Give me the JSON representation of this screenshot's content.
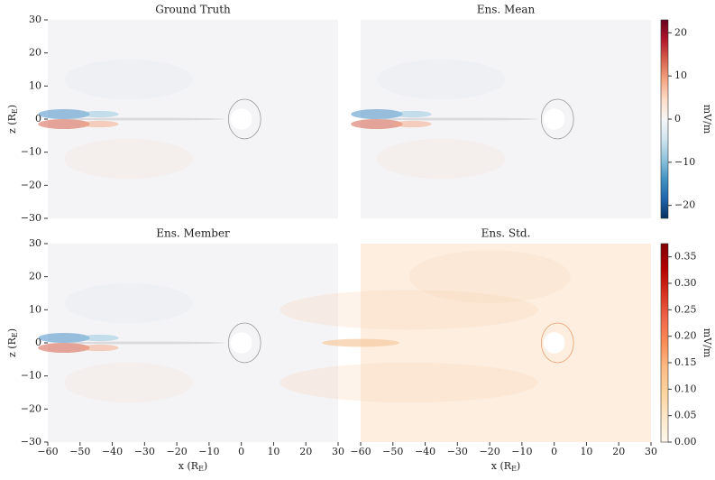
{
  "chart_data": [
    {
      "type": "heatmap",
      "title": "Ground Truth",
      "background": "#f4f4f6",
      "xlim": [
        -60,
        30
      ],
      "ylim": [
        -30,
        30
      ],
      "ylabel": [
        "z (R",
        "E",
        ")"
      ],
      "yticks": [
        {
          "value": -30,
          "label": "−30"
        },
        {
          "value": -20,
          "label": "−20"
        },
        {
          "value": -10,
          "label": "−10"
        },
        0,
        10,
        20,
        30
      ]
    },
    {
      "type": "heatmap",
      "title": "Ens. Mean",
      "background": "#f4f4f6",
      "xlim": [
        -60,
        30
      ],
      "ylim": [
        -30,
        30
      ],
      "colorbar": {
        "label": "mV/m",
        "lim": [
          -23,
          23
        ],
        "ticks": [
          {
            "value": -20,
            "label": "−20"
          },
          {
            "value": -10,
            "label": "−10"
          },
          0,
          10,
          20
        ],
        "colors": [
          "#053061",
          "#2166ac",
          "#4393c3",
          "#92c5de",
          "#d1e5f0",
          "#f7f7f7",
          "#fddbc7",
          "#f4a582",
          "#d6604d",
          "#b2182b",
          "#67001f"
        ]
      }
    },
    {
      "type": "heatmap",
      "title": "Ens. Member",
      "background": "#f4f4f6",
      "xlim": [
        -60,
        30
      ],
      "ylim": [
        -30,
        30
      ],
      "xlabel": [
        "x (R",
        "E",
        ")"
      ],
      "ylabel": [
        "z (R",
        "E",
        ")"
      ],
      "xticks": [
        {
          "value": -60,
          "label": "−60"
        },
        {
          "value": -50,
          "label": "−50"
        },
        {
          "value": -40,
          "label": "−40"
        },
        {
          "value": -30,
          "label": "−30"
        },
        {
          "value": -20,
          "label": "−20"
        },
        {
          "value": -10,
          "label": "−10"
        },
        0,
        10,
        20,
        30
      ],
      "yticks": [
        {
          "value": -30,
          "label": "−30"
        },
        {
          "value": -20,
          "label": "−20"
        },
        {
          "value": -10,
          "label": "−10"
        },
        0,
        10,
        20,
        30
      ]
    },
    {
      "type": "heatmap",
      "title": "Ens. Std.",
      "background": "#fdeee0",
      "xlim": [
        -60,
        30
      ],
      "ylim": [
        -30,
        30
      ],
      "xlabel": [
        "x (R",
        "E",
        ")"
      ],
      "xticks": [
        {
          "value": -60,
          "label": "−60"
        },
        {
          "value": -50,
          "label": "−50"
        },
        {
          "value": -40,
          "label": "−40"
        },
        {
          "value": -30,
          "label": "−30"
        },
        {
          "value": -20,
          "label": "−20"
        },
        {
          "value": -10,
          "label": "−10"
        },
        0,
        10,
        20,
        30
      ],
      "colorbar": {
        "label": "mV/m",
        "lim": [
          0,
          0.375
        ],
        "ticks": [
          {
            "value": 0,
            "label": "0.00"
          },
          0.05,
          {
            "value": 0.1,
            "label": "0.10"
          },
          0.15,
          {
            "value": 0.2,
            "label": "0.20"
          },
          0.25,
          {
            "value": 0.3,
            "label": "0.30"
          },
          0.35
        ],
        "colors": [
          "#fff7ec",
          "#fee8c8",
          "#fdd49e",
          "#fdbb84",
          "#fc8d59",
          "#ef6548",
          "#d7301f",
          "#b30000",
          "#7f0000"
        ]
      }
    }
  ]
}
